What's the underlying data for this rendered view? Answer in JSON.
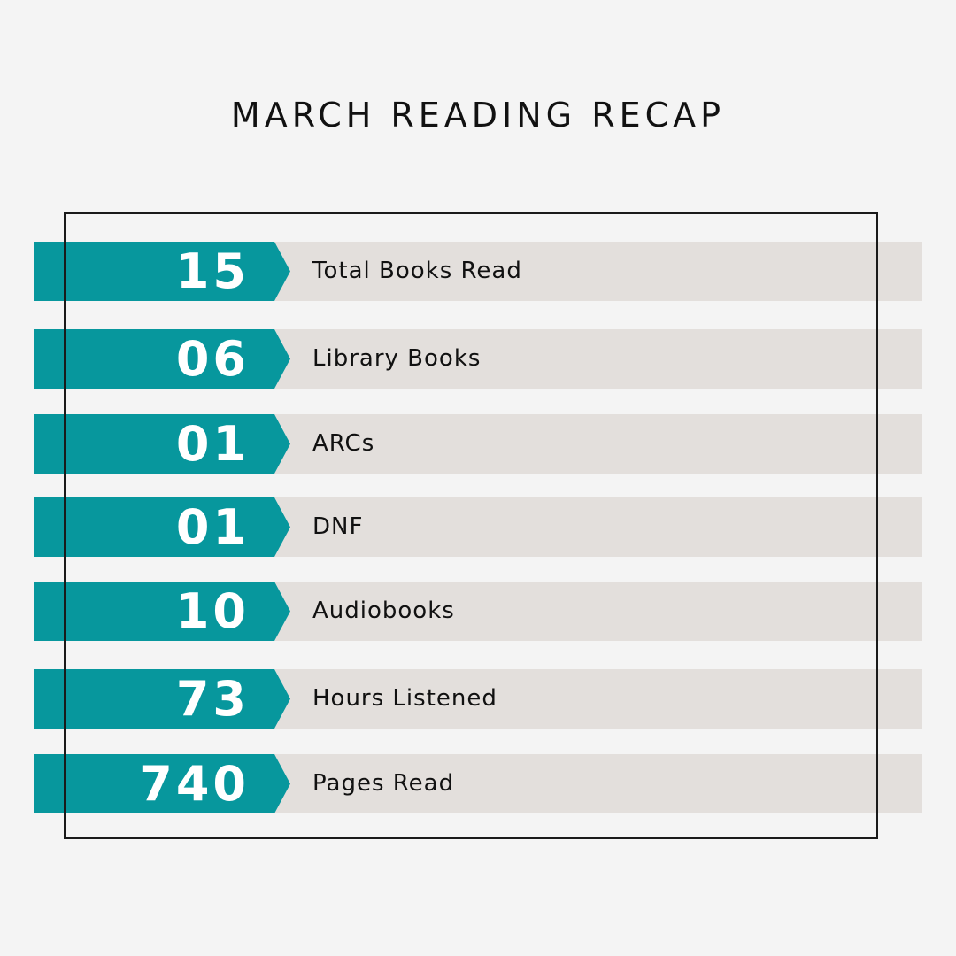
{
  "title": "MARCH READING RECAP",
  "colors": {
    "accent": "#07979d",
    "row_background": "#e3dfdc",
    "page_background": "#f4f4f4",
    "text": "#111111"
  },
  "stats": [
    {
      "value": "15",
      "label": "Total Books Read"
    },
    {
      "value": "06",
      "label": "Library Books"
    },
    {
      "value": "01",
      "label": "ARCs"
    },
    {
      "value": "01",
      "label": "DNF"
    },
    {
      "value": "10",
      "label": "Audiobooks"
    },
    {
      "value": "73",
      "label": "Hours Listened"
    },
    {
      "value": "740",
      "label": "Pages Read"
    }
  ]
}
